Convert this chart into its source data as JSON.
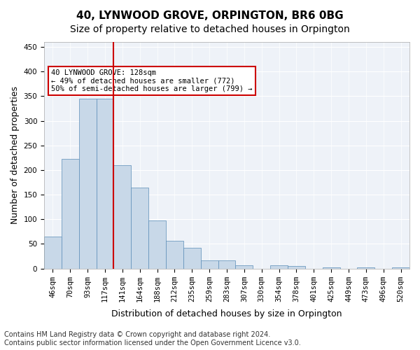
{
  "title": "40, LYNWOOD GROVE, ORPINGTON, BR6 0BG",
  "subtitle": "Size of property relative to detached houses in Orpington",
  "xlabel": "Distribution of detached houses by size in Orpington",
  "ylabel": "Number of detached properties",
  "bar_color": "#c8d8e8",
  "bar_edge_color": "#5b8db8",
  "background_color": "#eef2f8",
  "categories": [
    "46sqm",
    "70sqm",
    "93sqm",
    "117sqm",
    "141sqm",
    "164sqm",
    "188sqm",
    "212sqm",
    "235sqm",
    "259sqm",
    "283sqm",
    "307sqm",
    "330sqm",
    "354sqm",
    "378sqm",
    "401sqm",
    "425sqm",
    "449sqm",
    "473sqm",
    "496sqm",
    "520sqm"
  ],
  "values": [
    65,
    222,
    345,
    345,
    210,
    165,
    98,
    57,
    42,
    17,
    17,
    7,
    0,
    7,
    5,
    0,
    2,
    0,
    2,
    0,
    2
  ],
  "vline_x": 3.5,
  "vline_color": "#cc0000",
  "annotation_text": "40 LYNWOOD GROVE: 128sqm\n← 49% of detached houses are smaller (772)\n50% of semi-detached houses are larger (799) →",
  "annotation_box_color": "#ffffff",
  "annotation_box_edge": "#cc0000",
  "ylim": [
    0,
    460
  ],
  "yticks": [
    0,
    50,
    100,
    150,
    200,
    250,
    300,
    350,
    400,
    450
  ],
  "footer": "Contains HM Land Registry data © Crown copyright and database right 2024.\nContains public sector information licensed under the Open Government Licence v3.0.",
  "title_fontsize": 11,
  "subtitle_fontsize": 10,
  "xlabel_fontsize": 9,
  "ylabel_fontsize": 9,
  "tick_fontsize": 7.5,
  "footer_fontsize": 7
}
